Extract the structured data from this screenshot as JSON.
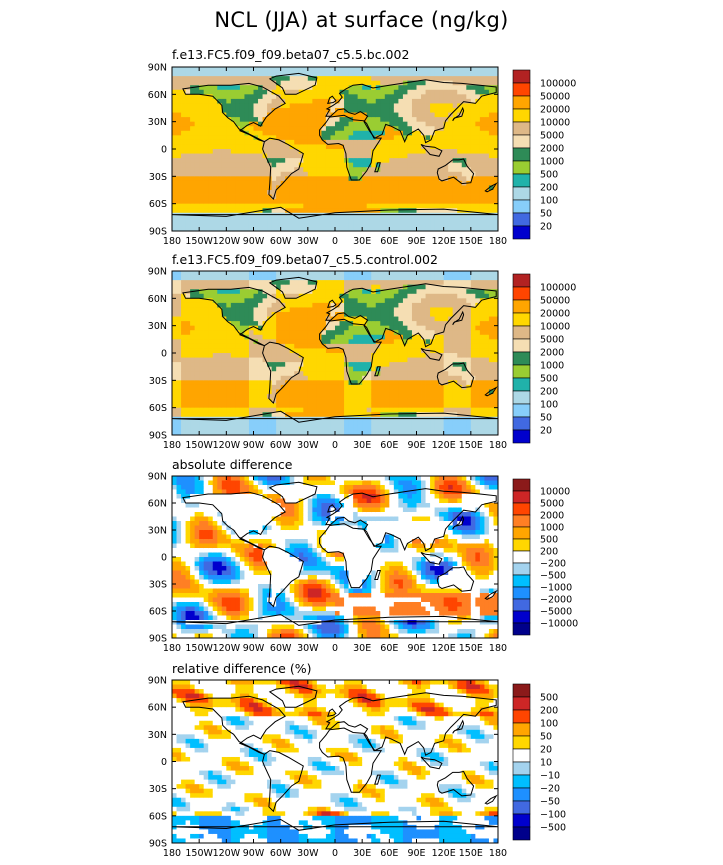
{
  "title": "NCL (JJA) at surface (ng/kg)",
  "chart_data": [
    {
      "type": "heatmap",
      "subtitle": "f.e13.FC5.f09_f09.beta07_c5.5.bc.002",
      "x_ticks": [
        "180",
        "150W",
        "120W",
        "90W",
        "60W",
        "30W",
        "0",
        "30E",
        "60E",
        "90E",
        "120E",
        "150E",
        "180"
      ],
      "y_ticks": [
        "90N",
        "60N",
        "30N",
        "0",
        "30S",
        "60S",
        "90S"
      ],
      "legend_labels": [
        "100000",
        "50000",
        "20000",
        "10000",
        "5000",
        "2000",
        "1000",
        "500",
        "200",
        "100",
        "50",
        "20"
      ],
      "legend_colors": [
        "#b22222",
        "#ff4500",
        "#ffa500",
        "#ffd700",
        "#deb887",
        "#f5deb3",
        "#2e8b57",
        "#9acd32",
        "#20b2aa",
        "#add8e6",
        "#87cefa",
        "#4169e1",
        "#0000cd"
      ]
    },
    {
      "type": "heatmap",
      "subtitle": "f.e13.FC5.f09_f09.beta07_c5.5.control.002",
      "x_ticks": [
        "180",
        "150W",
        "120W",
        "90W",
        "60W",
        "30W",
        "0",
        "30E",
        "60E",
        "90E",
        "120E",
        "150E",
        "180"
      ],
      "y_ticks": [
        "90N",
        "60N",
        "30N",
        "0",
        "30S",
        "60S",
        "90S"
      ],
      "legend_labels": [
        "100000",
        "50000",
        "20000",
        "10000",
        "5000",
        "2000",
        "1000",
        "500",
        "200",
        "100",
        "50",
        "20"
      ],
      "legend_colors": [
        "#b22222",
        "#ff4500",
        "#ffa500",
        "#ffd700",
        "#deb887",
        "#f5deb3",
        "#2e8b57",
        "#9acd32",
        "#20b2aa",
        "#add8e6",
        "#87cefa",
        "#4169e1",
        "#0000cd"
      ]
    },
    {
      "type": "heatmap",
      "subtitle": "absolute difference",
      "x_ticks": [
        "180",
        "150W",
        "120W",
        "90W",
        "60W",
        "30W",
        "0",
        "30E",
        "60E",
        "90E",
        "120E",
        "150E",
        "180"
      ],
      "y_ticks": [
        "90N",
        "60N",
        "30N",
        "0",
        "30S",
        "60S",
        "90S"
      ],
      "legend_labels": [
        "10000",
        "5000",
        "2000",
        "1000",
        "500",
        "200",
        "−200",
        "−500",
        "−1000",
        "−2000",
        "−5000",
        "−10000"
      ],
      "legend_colors": [
        "#8b1a1a",
        "#cd2626",
        "#ff4500",
        "#ff7f24",
        "#ffa500",
        "#ffd700",
        "#ffffff",
        "#a4d3ee",
        "#00bfff",
        "#1e90ff",
        "#4169e1",
        "#0000cd",
        "#00008b"
      ]
    },
    {
      "type": "heatmap",
      "subtitle": "relative difference (%)",
      "x_ticks": [
        "180",
        "150W",
        "120W",
        "90W",
        "60W",
        "30W",
        "0",
        "30E",
        "60E",
        "90E",
        "120E",
        "150E",
        "180"
      ],
      "y_ticks": [
        "90N",
        "60N",
        "30N",
        "0",
        "30S",
        "60S",
        "90S"
      ],
      "legend_labels": [
        "500",
        "200",
        "100",
        "50",
        "20",
        "10",
        "−10",
        "−20",
        "−50",
        "−100",
        "−500"
      ],
      "legend_colors": [
        "#8b1a1a",
        "#cd2626",
        "#ff4500",
        "#ffa500",
        "#ffd700",
        "#ffffff",
        "#a4d3ee",
        "#00bfff",
        "#1e90ff",
        "#4169e1",
        "#0000cd",
        "#00008b"
      ]
    }
  ]
}
